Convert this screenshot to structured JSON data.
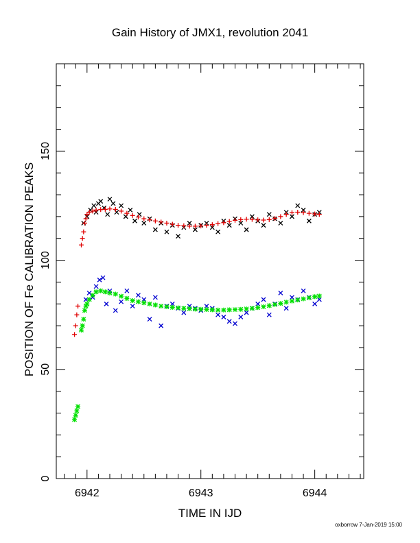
{
  "chart_data": {
    "type": "scatter",
    "title": "Gain History of JMX1, revolution 2041",
    "xlabel": "TIME IN IJD",
    "ylabel": "POSITION OF Fe CALIBRATION PEAKS",
    "xlim": [
      6941.73,
      6944.43
    ],
    "ylim": [
      0,
      190
    ],
    "xticks": [
      6942,
      6943,
      6944
    ],
    "xtick_labels": [
      "6942",
      "6943",
      "6944"
    ],
    "yticks": [
      0,
      50,
      100,
      150
    ],
    "ytick_labels": [
      "0",
      "50",
      "100",
      "150"
    ],
    "grid": false,
    "legend": "none",
    "footer": "oxborrow  7-Jan-2019 15:00",
    "series": [
      {
        "marker": "x",
        "color": "#000000",
        "x": [
          6941.97,
          6942.0,
          6942.03,
          6942.06,
          6942.08,
          6942.1,
          6942.12,
          6942.15,
          6942.18,
          6942.2,
          6942.23,
          6942.26,
          6942.3,
          6942.34,
          6942.38,
          6942.42,
          6942.46,
          6942.5,
          6942.55,
          6942.6,
          6942.65,
          6942.7,
          6942.75,
          6942.8,
          6942.85,
          6942.9,
          6942.95,
          6943.0,
          6943.05,
          6943.1,
          6943.15,
          6943.2,
          6943.25,
          6943.3,
          6943.35,
          6943.4,
          6943.45,
          6943.5,
          6943.55,
          6943.6,
          6943.65,
          6943.7,
          6943.75,
          6943.8,
          6943.85,
          6943.9,
          6943.95,
          6944.0,
          6944.04
        ],
        "y": [
          117,
          120,
          123,
          125,
          122,
          126,
          127,
          124,
          121,
          128,
          126,
          122,
          125,
          120,
          123,
          118,
          121,
          117,
          119,
          114,
          117,
          113,
          116,
          111,
          115,
          117,
          114,
          116,
          117,
          115,
          113,
          118,
          116,
          119,
          117,
          114,
          120,
          118,
          116,
          121,
          119,
          117,
          122,
          120,
          125,
          123,
          118,
          121,
          122
        ]
      },
      {
        "marker": "+",
        "color": "#e00000",
        "x": [
          6941.89,
          6941.9,
          6941.91,
          6941.92,
          6941.95,
          6941.96,
          6941.97,
          6941.98,
          6941.99,
          6942.0,
          6942.02,
          6942.05,
          6942.08,
          6942.12,
          6942.16,
          6942.2,
          6942.25,
          6942.3,
          6942.35,
          6942.4,
          6942.45,
          6942.5,
          6942.55,
          6942.6,
          6942.65,
          6942.7,
          6942.75,
          6942.8,
          6942.85,
          6942.9,
          6942.95,
          6943.0,
          6943.05,
          6943.1,
          6943.15,
          6943.2,
          6943.25,
          6943.3,
          6943.35,
          6943.4,
          6943.45,
          6943.5,
          6943.55,
          6943.6,
          6943.65,
          6943.7,
          6943.75,
          6943.8,
          6943.85,
          6943.9,
          6943.95,
          6944.0,
          6944.04
        ],
        "y": [
          66,
          70,
          75,
          79,
          107,
          110,
          113,
          117,
          119,
          121,
          122,
          122.5,
          123,
          123.2,
          123.3,
          123.5,
          123.3,
          122.5,
          121.5,
          120.5,
          119.8,
          119,
          118.5,
          118,
          117.5,
          117,
          116.5,
          116,
          115.8,
          115.6,
          115.6,
          115.7,
          116,
          116.3,
          116.8,
          117.2,
          117.8,
          118.3,
          118.6,
          118.8,
          118.7,
          118.5,
          118.4,
          118.6,
          119.2,
          120,
          121,
          121.8,
          122,
          121.8,
          121.5,
          121.2,
          121
        ]
      },
      {
        "marker": "x",
        "color": "#0000d0",
        "x": [
          6941.99,
          6942.02,
          6942.05,
          6942.08,
          6942.11,
          6942.14,
          6942.17,
          6942.2,
          6942.25,
          6942.3,
          6942.35,
          6942.4,
          6942.45,
          6942.5,
          6942.55,
          6942.6,
          6942.65,
          6942.7,
          6942.75,
          6942.8,
          6942.85,
          6942.9,
          6942.95,
          6943.0,
          6943.05,
          6943.1,
          6943.15,
          6943.2,
          6943.25,
          6943.3,
          6943.35,
          6943.4,
          6943.45,
          6943.5,
          6943.55,
          6943.6,
          6943.65,
          6943.7,
          6943.75,
          6943.8,
          6943.85,
          6943.9,
          6943.95,
          6944.0,
          6944.04
        ],
        "y": [
          82,
          85,
          83,
          88,
          91,
          92,
          80,
          86,
          77,
          81,
          86,
          79,
          84,
          82,
          73,
          83,
          70,
          79,
          80,
          78,
          76,
          79,
          78,
          77,
          79,
          78,
          75,
          74,
          72,
          71,
          74,
          76,
          78,
          80,
          82,
          75,
          80,
          85,
          78,
          83,
          82,
          86,
          83,
          80,
          82
        ]
      },
      {
        "marker": "*",
        "color": "#00e000",
        "x": [
          6941.89,
          6941.9,
          6941.91,
          6941.92,
          6941.95,
          6941.96,
          6941.97,
          6941.98,
          6941.99,
          6942.0,
          6942.02,
          6942.05,
          6942.08,
          6942.12,
          6942.16,
          6942.2,
          6942.25,
          6942.3,
          6942.35,
          6942.4,
          6942.45,
          6942.5,
          6942.55,
          6942.6,
          6942.65,
          6942.7,
          6942.75,
          6942.8,
          6942.85,
          6942.9,
          6942.95,
          6943.0,
          6943.05,
          6943.1,
          6943.15,
          6943.2,
          6943.25,
          6943.3,
          6943.35,
          6943.4,
          6943.45,
          6943.5,
          6943.55,
          6943.6,
          6943.65,
          6943.7,
          6943.75,
          6943.8,
          6943.85,
          6943.9,
          6943.95,
          6944.0,
          6944.04
        ],
        "y": [
          27,
          29,
          31,
          33,
          68,
          70,
          73,
          77,
          79,
          80,
          82,
          84,
          85.5,
          86,
          85.5,
          85,
          84.5,
          83.5,
          82.5,
          81.5,
          81,
          80.5,
          80,
          79.5,
          79,
          78.7,
          78.4,
          78.2,
          78,
          77.8,
          77.6,
          77.5,
          77.4,
          77.3,
          77.2,
          77.2,
          77.3,
          77.4,
          77.5,
          77.7,
          78,
          78.3,
          78.7,
          79.2,
          79.7,
          80.2,
          80.8,
          81.3,
          81.8,
          82.3,
          82.8,
          83.3,
          83.6
        ]
      }
    ]
  }
}
